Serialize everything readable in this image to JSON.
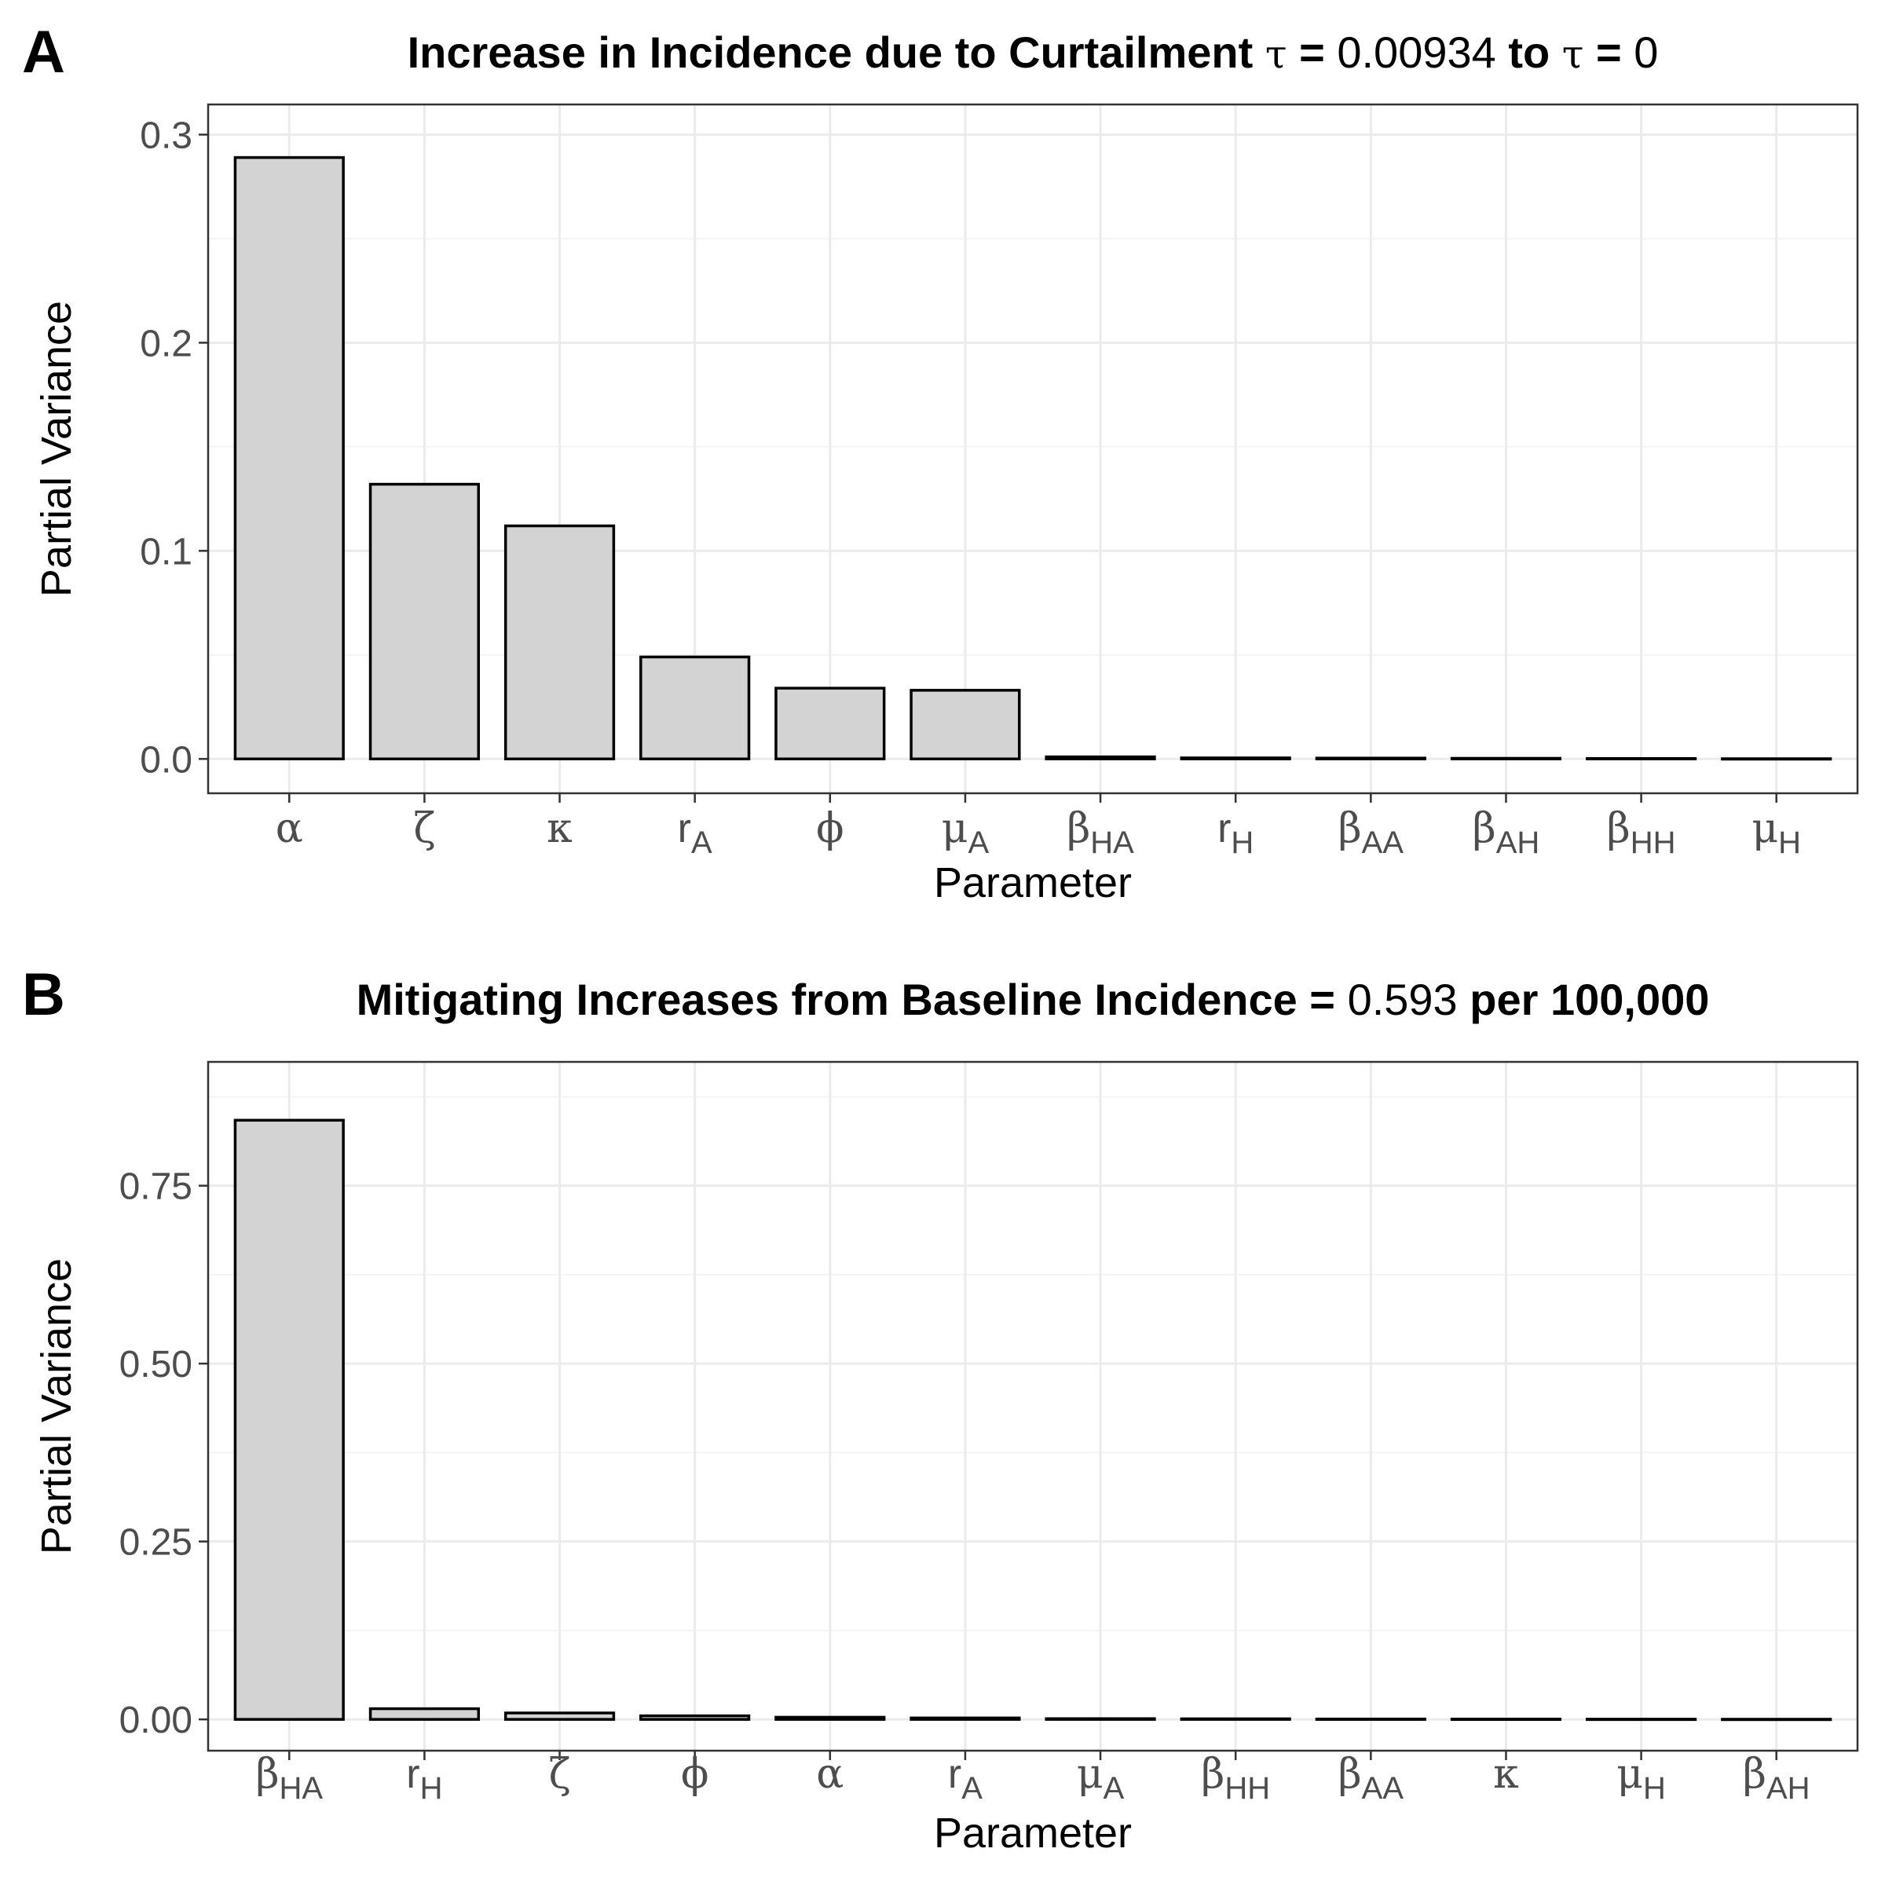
{
  "figure": {
    "panels": [
      {
        "letter": "A",
        "title_parts": [
          {
            "text": "Increase in Incidence due to Curtailment ",
            "style": "b"
          },
          {
            "text": "τ",
            "style": "sym"
          },
          {
            "text": " = ",
            "style": "b"
          },
          {
            "text": "0.00934",
            "style": "n"
          },
          {
            "text": " to ",
            "style": "b"
          },
          {
            "text": "τ",
            "style": "sym"
          },
          {
            "text": " = ",
            "style": "b"
          },
          {
            "text": "0",
            "style": "n"
          }
        ]
      },
      {
        "letter": "B",
        "title_parts": [
          {
            "text": "Mitigating Increases from Baseline Incidence = ",
            "style": "b"
          },
          {
            "text": "0.593",
            "style": "n"
          },
          {
            "text": " per 100,000",
            "style": "b"
          }
        ]
      }
    ]
  },
  "chart_data": [
    {
      "type": "bar",
      "title": "Increase in Incidence due to Curtailment τ = 0.00934 to τ = 0",
      "xlabel": "Parameter",
      "ylabel": "Partial Variance",
      "categories": [
        "α",
        "ζ",
        "κ",
        "rA",
        "ϕ",
        "μA",
        "βHA",
        "rH",
        "βAA",
        "βAH",
        "βHH",
        "μH"
      ],
      "category_labels": [
        {
          "base": "α",
          "sub": ""
        },
        {
          "base": "ζ",
          "sub": ""
        },
        {
          "base": "κ",
          "sub": ""
        },
        {
          "base": "r",
          "sub": "A"
        },
        {
          "base": "ϕ",
          "sub": ""
        },
        {
          "base": "μ",
          "sub": "A"
        },
        {
          "base": "β",
          "sub": "HA"
        },
        {
          "base": "r",
          "sub": "H"
        },
        {
          "base": "β",
          "sub": "AA"
        },
        {
          "base": "β",
          "sub": "AH"
        },
        {
          "base": "β",
          "sub": "HH"
        },
        {
          "base": "μ",
          "sub": "H"
        }
      ],
      "values": [
        0.289,
        0.132,
        0.112,
        0.049,
        0.034,
        0.033,
        0.001,
        0.0005,
        0.0004,
        0.0003,
        0.0002,
        0.0001
      ],
      "ylim": [
        -0.0165,
        0.3145
      ],
      "yticks": [
        0.0,
        0.1,
        0.2,
        0.3
      ],
      "ytick_labels": [
        "0.0",
        "0.1",
        "0.2",
        "0.3"
      ],
      "grid": true,
      "legend": "none"
    },
    {
      "type": "bar",
      "title": "Mitigating Increases from Baseline Incidence = 0.593 per 100,000",
      "xlabel": "Parameter",
      "ylabel": "Partial Variance",
      "categories": [
        "βHA",
        "rH",
        "ζ",
        "ϕ",
        "α",
        "rA",
        "μA",
        "βHH",
        "βAA",
        "κ",
        "μH",
        "βAH"
      ],
      "category_labels": [
        {
          "base": "β",
          "sub": "HA"
        },
        {
          "base": "r",
          "sub": "H"
        },
        {
          "base": "ζ",
          "sub": ""
        },
        {
          "base": "ϕ",
          "sub": ""
        },
        {
          "base": "α",
          "sub": ""
        },
        {
          "base": "r",
          "sub": "A"
        },
        {
          "base": "μ",
          "sub": "A"
        },
        {
          "base": "β",
          "sub": "HH"
        },
        {
          "base": "β",
          "sub": "AA"
        },
        {
          "base": "κ",
          "sub": ""
        },
        {
          "base": "μ",
          "sub": "H"
        },
        {
          "base": "β",
          "sub": "AH"
        }
      ],
      "values": [
        0.842,
        0.015,
        0.009,
        0.005,
        0.003,
        0.002,
        0.001,
        0.0008,
        0.0005,
        0.0004,
        0.0003,
        0.0002
      ],
      "ylim": [
        -0.044,
        0.924
      ],
      "yticks": [
        0.0,
        0.25,
        0.5,
        0.75
      ],
      "ytick_labels": [
        "0.00",
        "0.25",
        "0.50",
        "0.75"
      ],
      "grid": true,
      "legend": "none"
    }
  ]
}
